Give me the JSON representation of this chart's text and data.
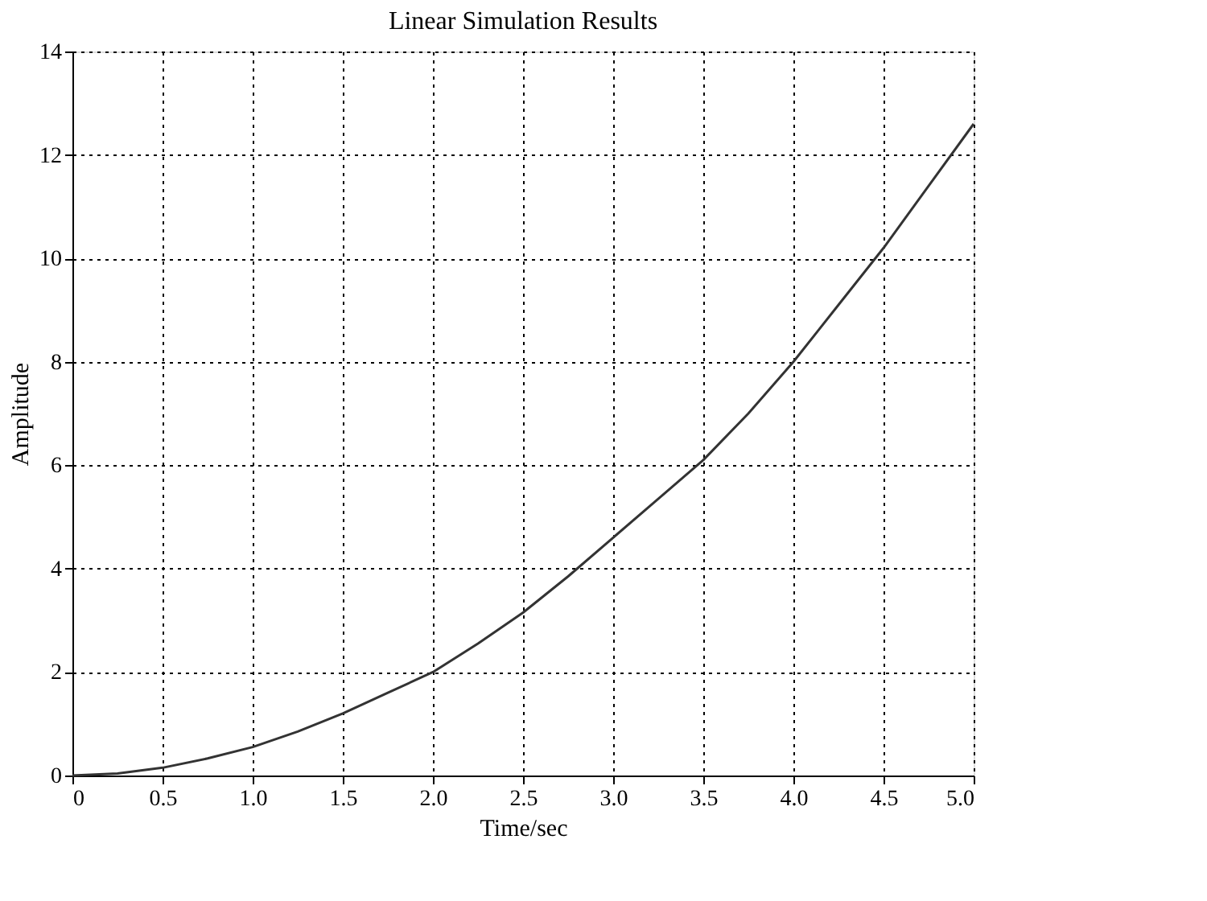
{
  "chart_data": {
    "type": "line",
    "title": "Linear Simulation Results",
    "xlabel": "Time/sec",
    "ylabel": "Amplitude",
    "x": [
      0,
      0.25,
      0.5,
      0.75,
      1.0,
      1.25,
      1.5,
      1.75,
      2.0,
      2.25,
      2.5,
      2.75,
      3.0,
      3.25,
      3.5,
      3.75,
      4.0,
      4.25,
      4.5,
      4.75,
      5.0
    ],
    "series": [
      {
        "color": "#333333",
        "values": [
          0,
          0.04,
          0.15,
          0.33,
          0.55,
          0.85,
          1.2,
          1.6,
          2.0,
          2.55,
          3.15,
          3.85,
          4.6,
          5.35,
          6.1,
          7.0,
          8.0,
          9.1,
          10.2,
          11.4,
          12.6
        ]
      }
    ],
    "xlim": [
      0,
      5
    ],
    "ylim": [
      0,
      14
    ],
    "xticks": [
      0,
      {
        "value": 0.5,
        "label": "0.5"
      },
      {
        "value": 1,
        "label": "1.0"
      },
      {
        "value": 1.5,
        "label": "1.5"
      },
      {
        "value": 2,
        "label": "2.0"
      },
      {
        "value": 2.5,
        "label": "2.5"
      },
      {
        "value": 3,
        "label": "3.0"
      },
      {
        "value": 3.5,
        "label": "3.5"
      },
      {
        "value": 4,
        "label": "4.0"
      },
      {
        "value": 4.5,
        "label": "4.5"
      },
      {
        "value": 5,
        "label": "5.0"
      }
    ],
    "yticks": [
      0,
      2,
      4,
      6,
      8,
      10,
      12,
      14
    ],
    "grid": true,
    "line_style": "solid",
    "marker": "none"
  }
}
